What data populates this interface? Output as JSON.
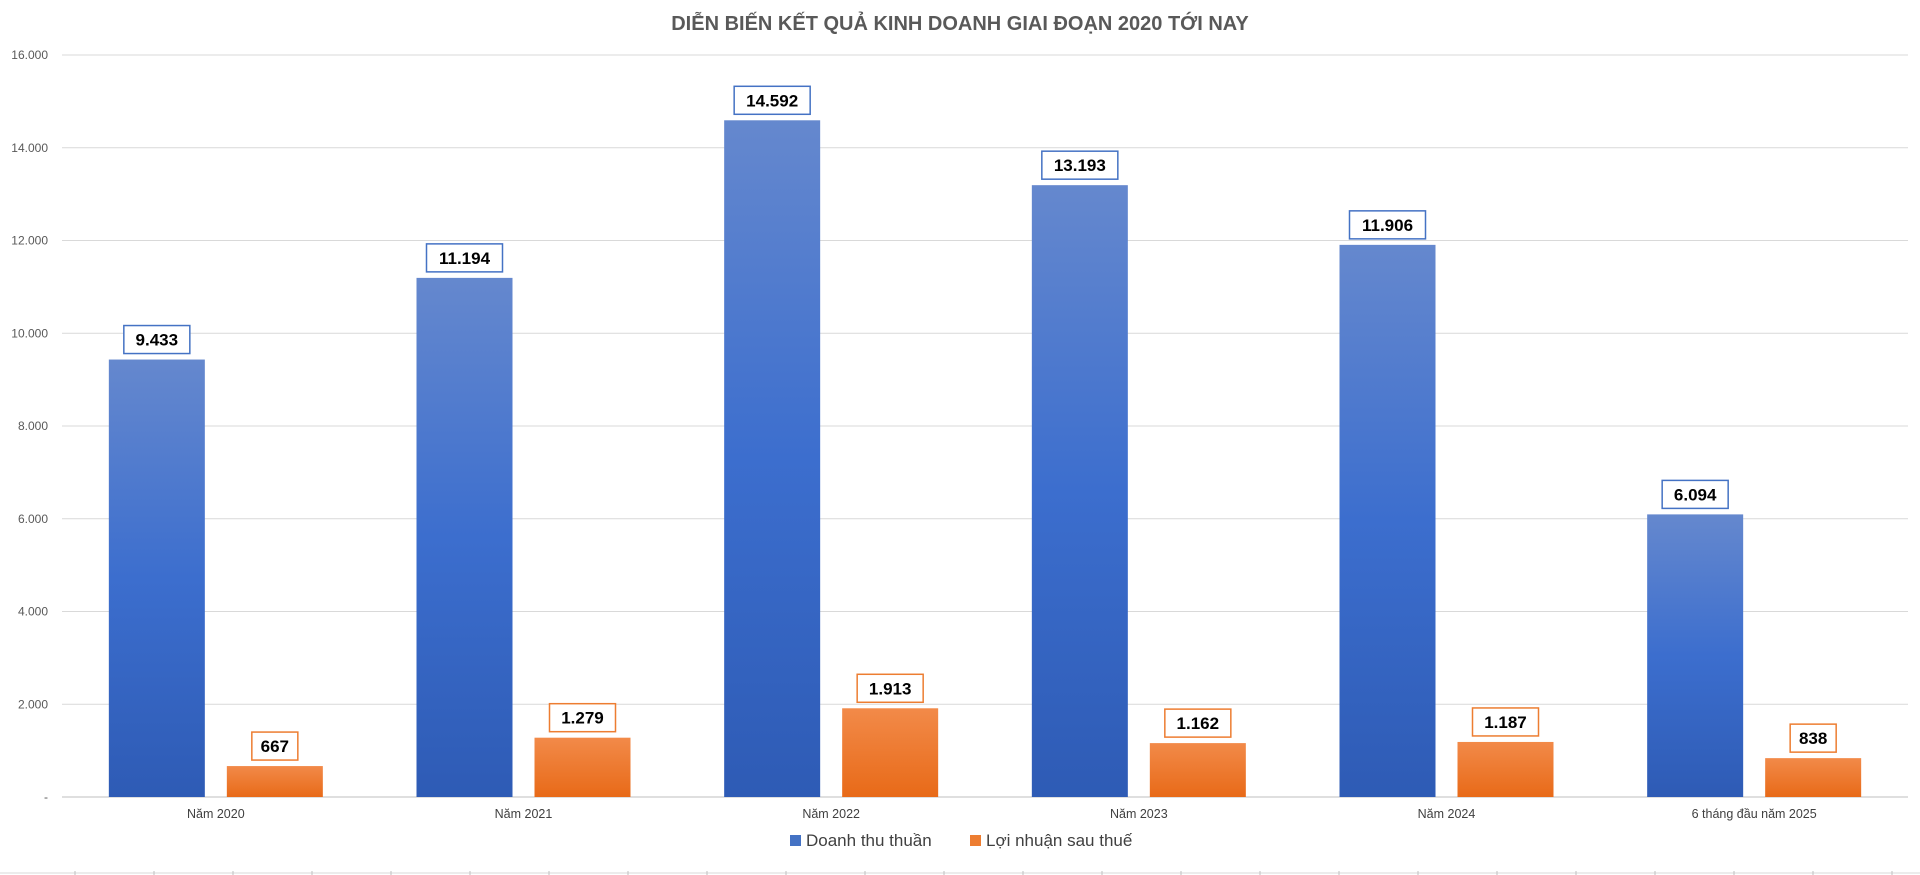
{
  "chart_data": {
    "type": "bar",
    "title": "DIỄN BIẾN KẾT QUẢ KINH DOANH GIAI ĐOẠN 2020 TỚI NAY",
    "categories": [
      "Năm 2020",
      "Năm 2021",
      "Năm 2022",
      "Năm 2023",
      "Năm 2024",
      "6 tháng đầu năm 2025"
    ],
    "series": [
      {
        "name": "Doanh thu thuần",
        "color": "#4472C4",
        "values": [
          9433,
          11194,
          14592,
          13193,
          11906,
          6094
        ],
        "labels": [
          "9.433",
          "11.194",
          "14.592",
          "13.193",
          "11.906",
          "6.094"
        ]
      },
      {
        "name": "Lợi nhuận sau thuế",
        "color": "#ED7D31",
        "values": [
          667,
          1279,
          1913,
          1162,
          1187,
          838
        ],
        "labels": [
          "667",
          "1.279",
          "1.913",
          "1.162",
          "1.187",
          "838"
        ]
      }
    ],
    "ylim": [
      0,
      16000
    ],
    "yticks": [
      0,
      2000,
      4000,
      6000,
      8000,
      10000,
      12000,
      14000,
      16000
    ],
    "ytick_labels": [
      "-",
      "2.000",
      "4.000",
      "6.000",
      "8.000",
      "10.000",
      "12.000",
      "14.000",
      "16.000"
    ],
    "grid": true,
    "legend_position": "bottom"
  }
}
